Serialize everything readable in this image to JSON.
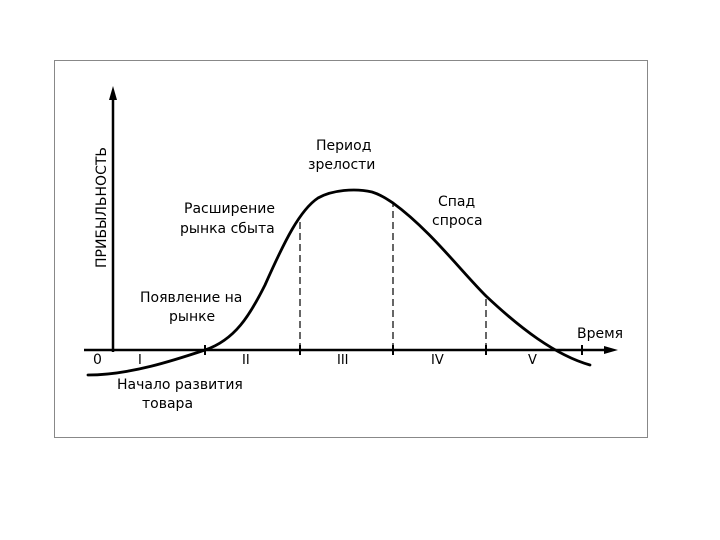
{
  "diagram": {
    "y_axis_label": "ПРИБЫЛЬНОСТЬ",
    "x_axis_label": "Время",
    "origin_label": "0",
    "annotations": {
      "start": [
        "Начало развития",
        "товара"
      ],
      "introduction": [
        "Появление на",
        "рынке"
      ],
      "growth": [
        "Расширение",
        "рынка сбыта"
      ],
      "maturity": [
        "Период",
        "зрелости"
      ],
      "decline": [
        "Спад",
        "спроса"
      ]
    },
    "stages": [
      "I",
      "II",
      "III",
      "IV",
      "V"
    ]
  },
  "colors": {
    "line": "#000000",
    "frame": "#888888",
    "background": "#ffffff"
  }
}
